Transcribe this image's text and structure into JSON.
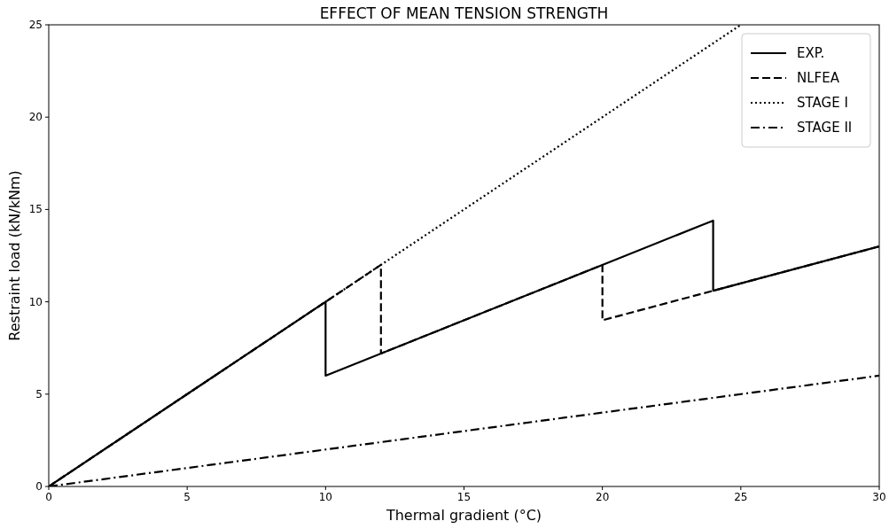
{
  "chart_data": {
    "type": "line",
    "title": "EFFECT OF MEAN TENSION STRENGTH",
    "xlabel": "Thermal gradient (°C)",
    "ylabel": "Restraint load (kN/kNm)",
    "xlim": [
      0,
      30
    ],
    "ylim": [
      0,
      25
    ],
    "xticks": [
      0,
      5,
      10,
      15,
      20,
      25,
      30
    ],
    "yticks": [
      0,
      5,
      10,
      15,
      20,
      25
    ],
    "grid": false,
    "legend": "top right",
    "marker": "none",
    "series": [
      {
        "name": "EXP.",
        "color": "#000000",
        "line_style": "solid",
        "x": [
          0,
          10,
          10,
          20,
          24,
          24,
          30
        ],
        "values": [
          0,
          10,
          6,
          12,
          14.4,
          10.6,
          13
        ]
      },
      {
        "name": "NLFEA",
        "color": "#000000",
        "line_style": "dashed",
        "x": [
          0,
          12,
          12,
          20,
          20,
          30
        ],
        "values": [
          0,
          12,
          7.2,
          12,
          9,
          13
        ]
      },
      {
        "name": "STAGE I",
        "color": "#000000",
        "line_style": "dotted",
        "x": [
          0,
          25
        ],
        "values": [
          0,
          25
        ]
      },
      {
        "name": "STAGE II",
        "color": "#000000",
        "line_style": "dashdot",
        "x": [
          0,
          30
        ],
        "values": [
          0,
          6
        ]
      }
    ]
  }
}
